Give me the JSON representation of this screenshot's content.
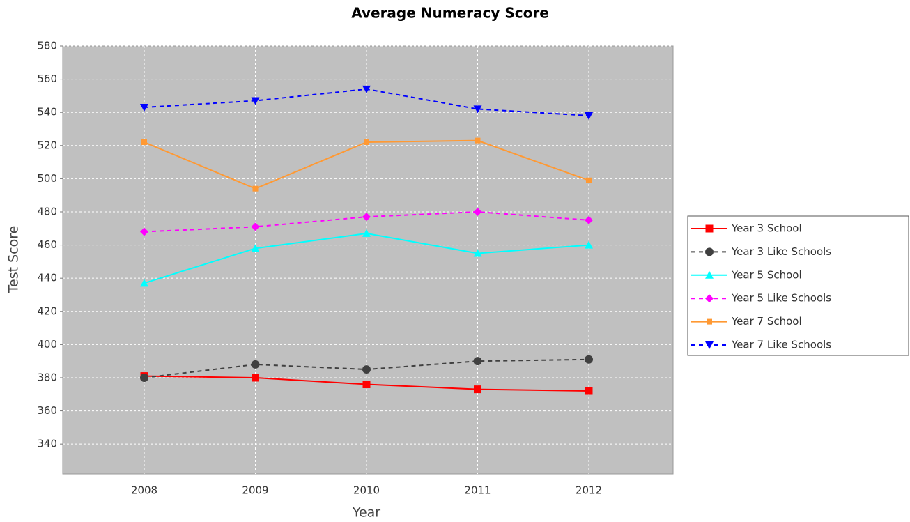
{
  "chart_data": {
    "type": "line",
    "title": "Average Numeracy Score",
    "x_label": "Year",
    "y_label": "Test Score",
    "categories": [
      "2008",
      "2009",
      "2010",
      "2011",
      "2012"
    ],
    "series": [
      {
        "name": "Year 3 School",
        "color": "#ff0000",
        "marker": "square",
        "dashed": false,
        "values": [
          381,
          380,
          376,
          373,
          372
        ]
      },
      {
        "name": "Year 3 Like Schools",
        "color": "#404040",
        "marker": "circle",
        "dashed": true,
        "values": [
          380,
          388,
          385,
          390,
          391
        ]
      },
      {
        "name": "Year 5 School",
        "color": "#00ffff",
        "marker": "triangle-up",
        "dashed": false,
        "values": [
          437,
          458,
          467,
          455,
          460
        ]
      },
      {
        "name": "Year 5 Like Schools",
        "color": "#ff00ff",
        "marker": "diamond",
        "dashed": true,
        "values": [
          468,
          471,
          477,
          480,
          475
        ]
      },
      {
        "name": "Year 7 School",
        "color": "#ff9933",
        "marker": "small-square",
        "dashed": false,
        "values": [
          522,
          494,
          522,
          523,
          499
        ]
      },
      {
        "name": "Year 7 Like Schools",
        "color": "#0000ff",
        "marker": "triangle-down",
        "dashed": true,
        "values": [
          543,
          547,
          554,
          542,
          538
        ]
      }
    ],
    "ylim": [
      322,
      580
    ],
    "yticks": [
      340,
      360,
      380,
      400,
      420,
      440,
      460,
      480,
      500,
      520,
      540,
      560,
      580
    ],
    "grid": true,
    "legend": "right"
  }
}
